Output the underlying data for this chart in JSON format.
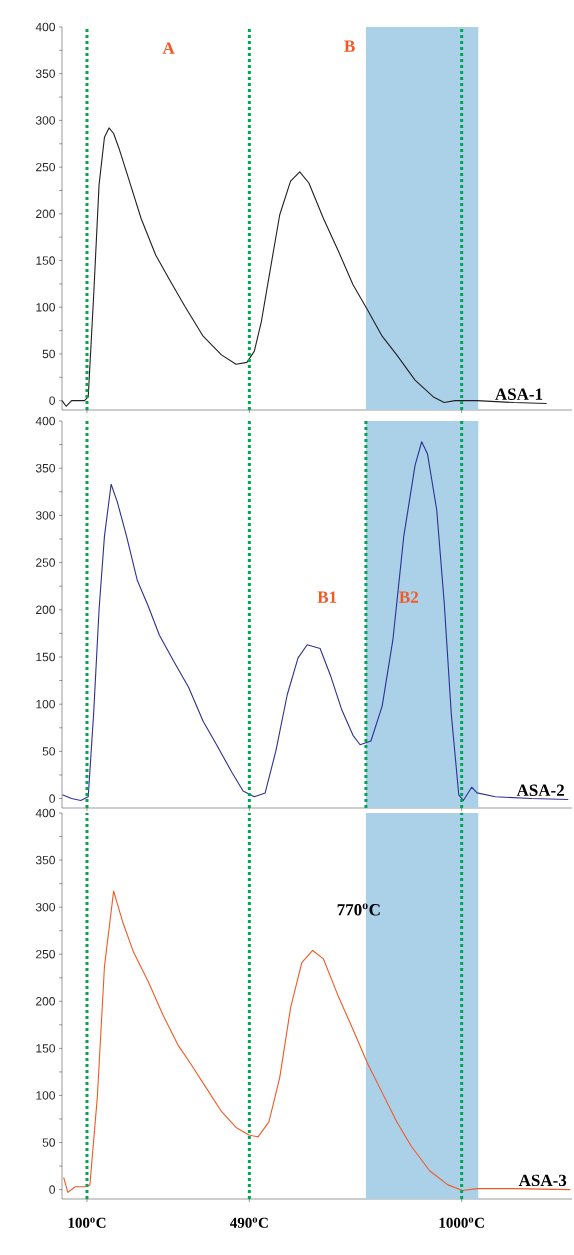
{
  "chart_data": [
    {
      "type": "line",
      "xlim": [
        40,
        1265
      ],
      "ylim": [
        -10,
        400
      ],
      "xticks": [
        100,
        490,
        1000
      ],
      "yticks": [
        0,
        50,
        100,
        150,
        200,
        250,
        300,
        350,
        400
      ],
      "tick_labels": "y",
      "grid": false,
      "marker": "none",
      "line_style": "solid",
      "series": [
        {
          "name": "ASA-1",
          "color": "#231f20",
          "x": [
            40,
            50,
            63,
            94,
            103,
            116,
            129,
            142,
            153,
            164,
            177,
            199,
            230,
            265,
            300,
            335,
            379,
            423,
            458,
            484,
            502,
            519,
            537,
            563,
            589,
            611,
            633,
            668,
            704,
            739,
            774,
            809,
            844,
            888,
            932,
            958,
            984,
            1037,
            1125,
            1204
          ],
          "values": [
            0,
            -6,
            0,
            0,
            4,
            112,
            231,
            282,
            292,
            286,
            270,
            239,
            195,
            156,
            128,
            101,
            69,
            49,
            39,
            41,
            53,
            85,
            132,
            199,
            235,
            245,
            233,
            195,
            160,
            124,
            97,
            69,
            49,
            22,
            4,
            -2,
            0,
            0,
            -2,
            -3
          ]
        }
      ],
      "ref_lines": [
        {
          "axis": "x",
          "value": 100,
          "color": "#00a651",
          "line_style": "dotted"
        },
        {
          "axis": "x",
          "value": 490,
          "color": "#00a651",
          "line_style": "dotted"
        },
        {
          "axis": "x",
          "value": 1000,
          "color": "#00a651",
          "line_style": "dotted"
        }
      ],
      "bands": [
        {
          "axis": "x",
          "from": 770,
          "to": 1040,
          "color": "#abd1e9"
        }
      ],
      "annotations": [
        "A",
        "B"
      ]
    },
    {
      "type": "line",
      "xlim": [
        40,
        1265
      ],
      "ylim": [
        -10,
        400
      ],
      "xticks": [
        100,
        490,
        1000
      ],
      "yticks": [
        0,
        50,
        100,
        150,
        200,
        250,
        300,
        350,
        400
      ],
      "tick_labels": "y",
      "grid": false,
      "marker": "none",
      "line_style": "solid",
      "series": [
        {
          "name": "ASA-2",
          "color": "#2e3192",
          "x": [
            41,
            63,
            85,
            103,
            116,
            129,
            142,
            158,
            173,
            195,
            221,
            247,
            274,
            309,
            344,
            379,
            414,
            449,
            475,
            502,
            528,
            554,
            581,
            607,
            629,
            660,
            686,
            712,
            739,
            756,
            782,
            809,
            835,
            861,
            888,
            904,
            918,
            940,
            958,
            975,
            993,
            1004,
            1024,
            1037,
            1081,
            1168,
            1256
          ],
          "values": [
            4,
            0,
            -2,
            2,
            90,
            200,
            278,
            333,
            314,
            278,
            231,
            204,
            173,
            145,
            118,
            82,
            55,
            27,
            8,
            2,
            6,
            51,
            110,
            149,
            163,
            159,
            129,
            94,
            67,
            57,
            61,
            98,
            169,
            278,
            353,
            378,
            365,
            306,
            208,
            90,
            4,
            -2,
            12,
            6,
            2,
            0,
            -1
          ]
        }
      ],
      "ref_lines": [
        {
          "axis": "x",
          "value": 100,
          "color": "#00a651",
          "line_style": "dotted"
        },
        {
          "axis": "x",
          "value": 490,
          "color": "#00a651",
          "line_style": "dotted"
        },
        {
          "axis": "x",
          "value": 770,
          "color": "#00a651",
          "line_style": "dotted"
        },
        {
          "axis": "x",
          "value": 1000,
          "color": "#00a651",
          "line_style": "dotted"
        }
      ],
      "bands": [
        {
          "axis": "x",
          "from": 770,
          "to": 1040,
          "color": "#abd1e9"
        }
      ],
      "annotations": [
        "B1",
        "B2"
      ]
    },
    {
      "type": "line",
      "xlim": [
        40,
        1265
      ],
      "ylim": [
        -10,
        400
      ],
      "yticks": [
        0,
        50,
        100,
        150,
        200,
        250,
        300,
        350,
        400
      ],
      "grid": false,
      "marker": "none",
      "line_style": "solid",
      "series": [
        {
          "name": "ASA-3",
          "color": "#f15a24",
          "x": [
            44,
            54,
            72,
            98,
            107,
            125,
            142,
            164,
            186,
            212,
            247,
            282,
            318,
            353,
            388,
            423,
            458,
            489,
            511,
            537,
            563,
            589,
            616,
            642,
            668,
            704,
            739,
            774,
            809,
            844,
            879,
            923,
            967,
            1002,
            1037,
            1125,
            1261
          ],
          "values": [
            13,
            -3,
            3,
            3,
            5,
            99,
            237,
            317,
            284,
            252,
            221,
            186,
            154,
            131,
            107,
            83,
            66,
            58,
            56,
            72,
            119,
            193,
            241,
            254,
            245,
            205,
            170,
            134,
            103,
            72,
            46,
            20,
            5,
            -1,
            1,
            1,
            0
          ]
        }
      ],
      "xticks": [
        {
          "value": 100,
          "label": "100$^{o}$C"
        },
        {
          "value": 490,
          "label": "490$^{o}$C"
        },
        {
          "value": 1000,
          "label": "1000$^{o}$C"
        }
      ],
      "ref_lines": [
        {
          "axis": "x",
          "value": 100,
          "color": "#00a651",
          "line_style": "dotted"
        },
        {
          "axis": "x",
          "value": 490,
          "color": "#00a651",
          "line_style": "dotted"
        },
        {
          "axis": "x",
          "value": 1000,
          "color": "#00a651",
          "line_style": "dotted"
        }
      ],
      "bands": [
        {
          "axis": "x",
          "from": 770,
          "to": 1040,
          "color": "#abd1e9"
        }
      ],
      "annotations": [
        "770$^{o}$C"
      ]
    }
  ]
}
